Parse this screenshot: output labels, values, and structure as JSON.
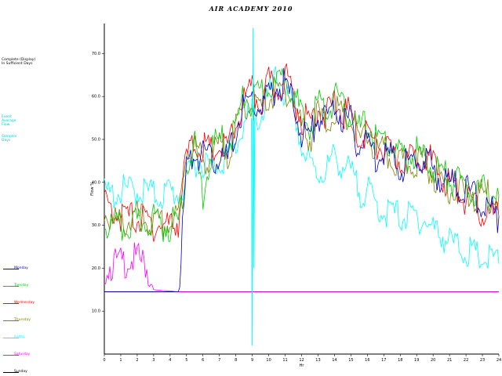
{
  "chart_data": {
    "type": "line",
    "title": "AIR ACADEMY 2010",
    "xlabel": "Hr",
    "ylabel": "Flow %",
    "xlim": [
      0,
      24
    ],
    "ylim": [
      0,
      77
    ],
    "x_ticks": [
      "0",
      "1",
      "2",
      "3",
      "4",
      "5",
      "6",
      "7",
      "8",
      "9",
      "10",
      "11",
      "12",
      "13",
      "14",
      "15",
      "16",
      "17",
      "18",
      "19",
      "20",
      "21",
      "22",
      "23",
      "24"
    ],
    "y_ticks": [
      "10.0",
      "20.0",
      "30.0",
      "40.0",
      "50.0",
      "60.0",
      "70.0"
    ],
    "grid": false,
    "legend_position": "left",
    "baseline_value": 14.5,
    "x": [
      0,
      0.5,
      1,
      1.5,
      2,
      2.5,
      3,
      3.5,
      4,
      4.5,
      5,
      5.5,
      6,
      6.5,
      7,
      7.5,
      8,
      8.5,
      9,
      9.5,
      10,
      10.5,
      11,
      11.5,
      12,
      12.5,
      13,
      13.5,
      14,
      14.5,
      15,
      15.5,
      16,
      16.5,
      17,
      17.5,
      18,
      18.5,
      19,
      19.5,
      20,
      20.5,
      21,
      21.5,
      22,
      22.5,
      23,
      23.5,
      24
    ],
    "series": [
      {
        "name": "Monday",
        "color": "#0000cc",
        "values": [
          14.5,
          14.5,
          14.5,
          14.5,
          14.5,
          14.5,
          14.5,
          14.5,
          14.5,
          14.5,
          43,
          47,
          46,
          45,
          46,
          45,
          52,
          58,
          59,
          57,
          60,
          62,
          63,
          58,
          52,
          50,
          56,
          54,
          58,
          55,
          54,
          48,
          50,
          46,
          48,
          45,
          44,
          44,
          45,
          46,
          43,
          41,
          40,
          39,
          38,
          37,
          35,
          33,
          32
        ]
      },
      {
        "name": "Tuesday",
        "color": "#00cc00",
        "values": [
          30,
          29.5,
          29,
          30,
          30,
          31,
          31.5,
          30,
          30,
          31,
          44,
          48,
          36,
          47,
          50,
          49,
          53,
          60,
          58,
          61,
          63,
          62,
          66,
          61,
          55,
          53,
          59,
          56,
          60,
          57,
          56,
          52,
          54,
          50,
          50,
          48,
          46,
          46,
          47,
          45,
          44,
          42,
          41,
          40,
          39,
          38,
          38,
          37,
          37
        ]
      },
      {
        "name": "Wednesday",
        "color": "#ff0000",
        "values": [
          35,
          34,
          32,
          32,
          31.5,
          31,
          30,
          30,
          30,
          31,
          46,
          49,
          48,
          47,
          48,
          48,
          53,
          59,
          61,
          58,
          63,
          61,
          65,
          60,
          55,
          54,
          58,
          55,
          59,
          56,
          56,
          50,
          52,
          48,
          48,
          46,
          45,
          45,
          46,
          47,
          44,
          41,
          40,
          38,
          36,
          34,
          33,
          32,
          32
        ]
      },
      {
        "name": "Thursday",
        "color": "#808000",
        "values": [
          33,
          31,
          30,
          31,
          32,
          31,
          30,
          30,
          30,
          32,
          48,
          48,
          45,
          46,
          48,
          47,
          52,
          58,
          58,
          57,
          60,
          60,
          62,
          59,
          53,
          50,
          56,
          53,
          57,
          55,
          54,
          49,
          51,
          47,
          47,
          45,
          44,
          44,
          45,
          45,
          42,
          40,
          39,
          38,
          37,
          36,
          37,
          37,
          37
        ]
      },
      {
        "name": "Friday",
        "color": "#00ffff",
        "values": [
          37,
          37,
          38,
          38,
          38,
          38,
          37,
          37,
          38,
          37,
          40,
          45,
          45,
          43,
          45,
          46,
          48,
          54,
          56,
          55,
          60,
          64,
          60,
          58,
          48,
          44,
          42,
          43,
          46,
          44,
          42,
          38,
          38,
          35,
          33,
          33,
          32,
          32,
          32,
          31,
          29,
          28,
          26,
          25,
          24,
          23,
          22,
          22,
          21
        ]
      },
      {
        "name": "Saturday",
        "color": "#ff00ff",
        "values": [
          20,
          21,
          21,
          22,
          22,
          21,
          15,
          14.8,
          14.7,
          14.5,
          14.5,
          14.5,
          14.5,
          14.5,
          14.5,
          14.5,
          14.5,
          14.5,
          14.5,
          14.5,
          14.5,
          14.5,
          14.5,
          14.5,
          14.5,
          14.5,
          14.5,
          14.5,
          14.5,
          14.5,
          14.5,
          14.5,
          14.5,
          14.5,
          14.5,
          14.5,
          14.5,
          14.5,
          14.5,
          14.5,
          14.5,
          14.5,
          14.5,
          14.5,
          14.5,
          14.5,
          14.5,
          14.5,
          14.5
        ]
      },
      {
        "name": "Sunday",
        "color": "#000000",
        "values": [
          14.5,
          14.5,
          14.5,
          14.5,
          14.5,
          14.5,
          14.5,
          14.5,
          14.5,
          14.5,
          14.5,
          14.5,
          14.5,
          14.5,
          14.5,
          14.5,
          14.5,
          14.5,
          14.5,
          14.5,
          14.5,
          14.5,
          14.5,
          14.5,
          14.5,
          14.5,
          14.5,
          14.5,
          14.5,
          14.5,
          14.5,
          14.5,
          14.5,
          14.5,
          14.5,
          14.5,
          14.5,
          14.5,
          14.5,
          14.5,
          14.5,
          14.5,
          14.5,
          14.5,
          14.5,
          14.5,
          14.5,
          14.5,
          14.5
        ]
      }
    ]
  },
  "side_notes": {
    "block1": "Complete (Display)\nIn Sufficient Days",
    "block2": "Event\nAverage\nFlow",
    "block3": "Samples\nDays"
  }
}
